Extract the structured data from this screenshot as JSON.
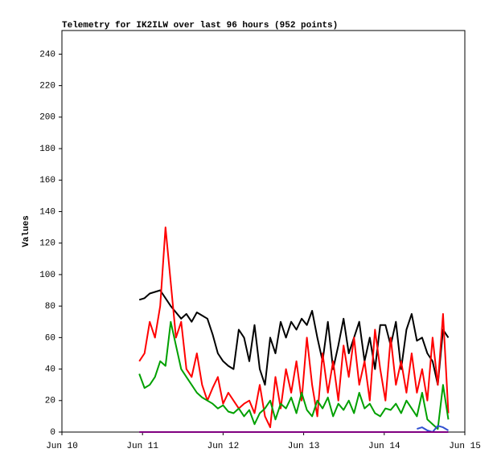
{
  "chart_data": {
    "type": "line",
    "title": "Telemetry for IK2ILW over last 96 hours (952 points)",
    "y_label": "Values",
    "xlim": [
      10,
      15
    ],
    "xticks": [
      {
        "value": 10,
        "label": "Jun 10"
      },
      {
        "value": 11,
        "label": "Jun 11"
      },
      {
        "value": 12,
        "label": "Jun 12"
      },
      {
        "value": 13,
        "label": "Jun 13"
      },
      {
        "value": 14,
        "label": "Jun 14"
      },
      {
        "value": 15,
        "label": "Jun 15"
      }
    ],
    "ylim": [
      0,
      255
    ],
    "yticks": [
      0,
      20,
      40,
      60,
      80,
      100,
      120,
      140,
      160,
      180,
      200,
      220,
      240
    ],
    "x": [
      10.96,
      11.025,
      11.09,
      11.155,
      11.22,
      11.285,
      11.35,
      11.415,
      11.48,
      11.545,
      11.61,
      11.675,
      11.74,
      11.805,
      11.87,
      11.935,
      12.0,
      12.065,
      12.13,
      12.195,
      12.26,
      12.325,
      12.39,
      12.455,
      12.52,
      12.585,
      12.65,
      12.715,
      12.78,
      12.845,
      12.91,
      12.975,
      13.04,
      13.105,
      13.17,
      13.235,
      13.3,
      13.365,
      13.43,
      13.495,
      13.56,
      13.625,
      13.69,
      13.755,
      13.82,
      13.885,
      13.95,
      14.015,
      14.08,
      14.145,
      14.21,
      14.275,
      14.34,
      14.405,
      14.47,
      14.535,
      14.6,
      14.665,
      14.73,
      14.795
    ],
    "series": [
      {
        "color": "#000000",
        "values": [
          84,
          85,
          88,
          89,
          90,
          85,
          80,
          76,
          72,
          75,
          70,
          76,
          74,
          72,
          62,
          50,
          45,
          42,
          40,
          65,
          60,
          45,
          68,
          40,
          30,
          60,
          50,
          70,
          60,
          70,
          65,
          72,
          68,
          77,
          60,
          45,
          70,
          40,
          55,
          72,
          50,
          60,
          70,
          45,
          60,
          40,
          68,
          68,
          55,
          70,
          40,
          65,
          75,
          58,
          60,
          50,
          45,
          30,
          65,
          60
        ]
      },
      {
        "color": "#ff0000",
        "values": [
          45,
          50,
          70,
          60,
          80,
          130,
          95,
          60,
          70,
          40,
          35,
          50,
          30,
          20,
          28,
          35,
          18,
          25,
          20,
          15,
          18,
          20,
          12,
          30,
          10,
          3,
          35,
          15,
          40,
          25,
          45,
          20,
          60,
          30,
          10,
          50,
          25,
          45,
          20,
          55,
          35,
          60,
          30,
          45,
          20,
          65,
          40,
          20,
          60,
          30,
          45,
          25,
          50,
          25,
          40,
          20,
          60,
          30,
          75,
          12
        ]
      },
      {
        "color": "#00a000",
        "values": [
          37,
          28,
          30,
          35,
          45,
          42,
          70,
          55,
          40,
          35,
          30,
          25,
          22,
          20,
          18,
          15,
          17,
          13,
          12,
          15,
          10,
          14,
          5,
          12,
          15,
          20,
          8,
          18,
          15,
          22,
          12,
          25,
          14,
          10,
          20,
          15,
          22,
          10,
          18,
          14,
          20,
          12,
          25,
          15,
          18,
          12,
          10,
          15,
          14,
          18,
          12,
          20,
          15,
          10,
          25,
          8,
          5,
          2,
          30,
          8
        ]
      },
      {
        "color": "#3050d0",
        "values": [
          null,
          null,
          null,
          null,
          null,
          null,
          null,
          null,
          null,
          null,
          null,
          null,
          null,
          null,
          null,
          null,
          null,
          null,
          null,
          null,
          null,
          null,
          null,
          null,
          null,
          null,
          null,
          null,
          null,
          null,
          null,
          null,
          null,
          null,
          null,
          null,
          null,
          null,
          null,
          null,
          null,
          null,
          null,
          null,
          null,
          null,
          null,
          null,
          null,
          null,
          null,
          null,
          null,
          2,
          3,
          1,
          0,
          4,
          3,
          1
        ]
      },
      {
        "color": "#800080",
        "values": [
          0,
          0,
          0,
          0,
          0,
          0,
          0,
          0,
          0,
          0,
          0,
          0,
          0,
          0,
          0,
          0,
          0,
          0,
          0,
          0,
          0,
          0,
          0,
          0,
          0,
          0,
          0,
          0,
          0,
          0,
          0,
          0,
          0,
          0,
          0,
          0,
          0,
          0,
          0,
          0,
          0,
          0,
          0,
          0,
          0,
          0,
          0,
          0,
          0,
          0,
          0,
          0,
          0,
          0,
          0,
          0,
          0,
          0,
          0,
          0
        ]
      }
    ]
  }
}
